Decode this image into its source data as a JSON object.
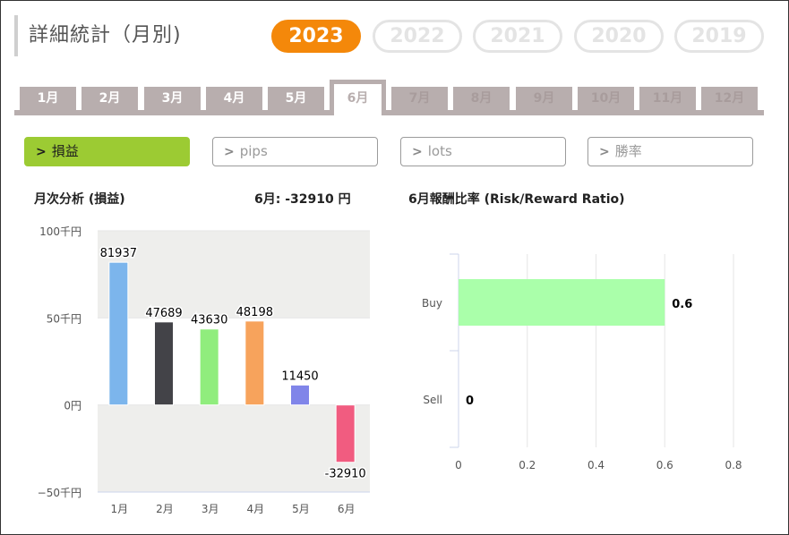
{
  "page": {
    "title": "詳細統計（月別)"
  },
  "years": [
    {
      "label": "2023",
      "active": true
    },
    {
      "label": "2022",
      "active": false
    },
    {
      "label": "2021",
      "active": false
    },
    {
      "label": "2020",
      "active": false
    },
    {
      "label": "2019",
      "active": false
    }
  ],
  "months": [
    "1月",
    "2月",
    "3月",
    "4月",
    "5月",
    "6月",
    "7月",
    "8月",
    "9月",
    "10月",
    "11月",
    "12月"
  ],
  "active_month_index": 5,
  "filters": [
    {
      "label": "損益",
      "active": true
    },
    {
      "label": "pips",
      "active": false
    },
    {
      "label": "lots",
      "active": false
    },
    {
      "label": "勝率",
      "active": false
    }
  ],
  "monthly_chart": {
    "heading": "月次分析 (損益)",
    "summary": "6月:  -32910 円"
  },
  "rr_chart": {
    "heading": "6月報酬比率 (Risk/Reward Ratio)"
  },
  "colors": {
    "accent_orange": "#f4880a",
    "accent_green": "#9ccb33",
    "tab_gray": "#b8aeae"
  },
  "chart_data": [
    {
      "type": "bar",
      "title": "月次分析 (損益)",
      "categories": [
        "1月",
        "2月",
        "3月",
        "4月",
        "5月",
        "6月"
      ],
      "values": [
        81937,
        47689,
        43630,
        48198,
        11450,
        -32910
      ],
      "value_labels": [
        "81937",
        "47689",
        "43630",
        "48198",
        "11450",
        "-32910"
      ],
      "bar_colors": [
        "#7cb5ec",
        "#434348",
        "#90ed7d",
        "#f7a35c",
        "#8085e9",
        "#f15c80"
      ],
      "ylim": [
        -50000,
        100000
      ],
      "y_ticks": [
        100000,
        50000,
        0,
        -50000
      ],
      "y_tick_labels": [
        "100千円",
        "50千円",
        "0円",
        "−50千円"
      ],
      "grid": true
    },
    {
      "type": "bar",
      "orientation": "horizontal",
      "title": "6月報酬比率 (Risk/Reward Ratio)",
      "categories": [
        "Buy",
        "Sell"
      ],
      "values": [
        0.6,
        0
      ],
      "value_labels": [
        "0.6",
        "0"
      ],
      "bar_color": "#aaffaa",
      "xlim": [
        0,
        0.8
      ],
      "x_ticks": [
        0,
        0.2,
        0.4,
        0.6,
        0.8
      ],
      "x_tick_labels": [
        "0",
        "0.2",
        "0.4",
        "0.6",
        "0.8"
      ],
      "grid": true
    }
  ]
}
